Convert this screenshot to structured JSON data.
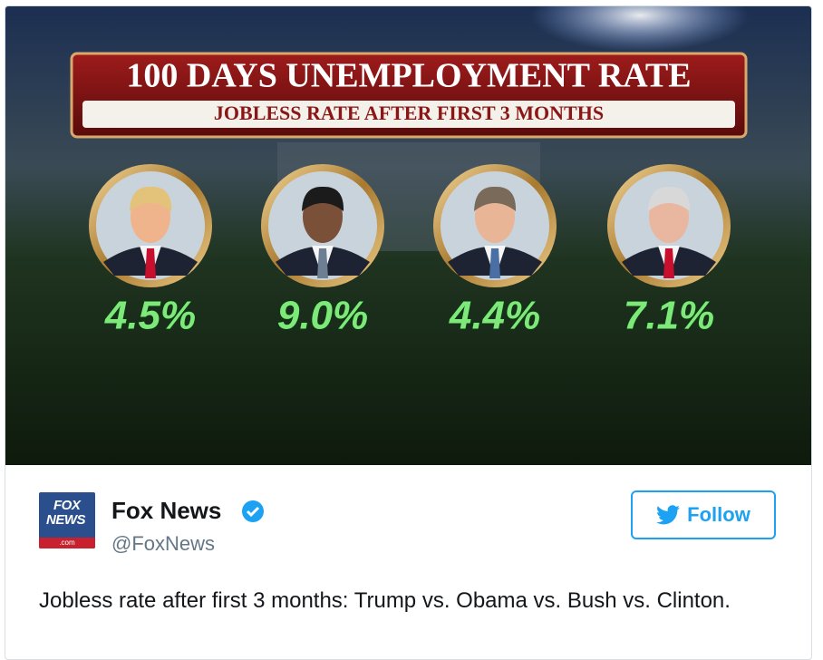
{
  "graphic": {
    "title": "100 DAYS UNEMPLOYMENT RATE",
    "subtitle": "JOBLESS RATE AFTER FIRST 3 MONTHS",
    "rates": [
      "4.5%",
      "9.0%",
      "4.4%",
      "7.1%"
    ]
  },
  "tweet": {
    "logo": [
      "FOX",
      "NEWS",
      ".com"
    ],
    "name": "Fox News",
    "handle": "@FoxNews",
    "button": "Follow",
    "text": "Jobless rate after first 3 months: Trump vs. Obama vs. Bush vs. Clinton."
  }
}
